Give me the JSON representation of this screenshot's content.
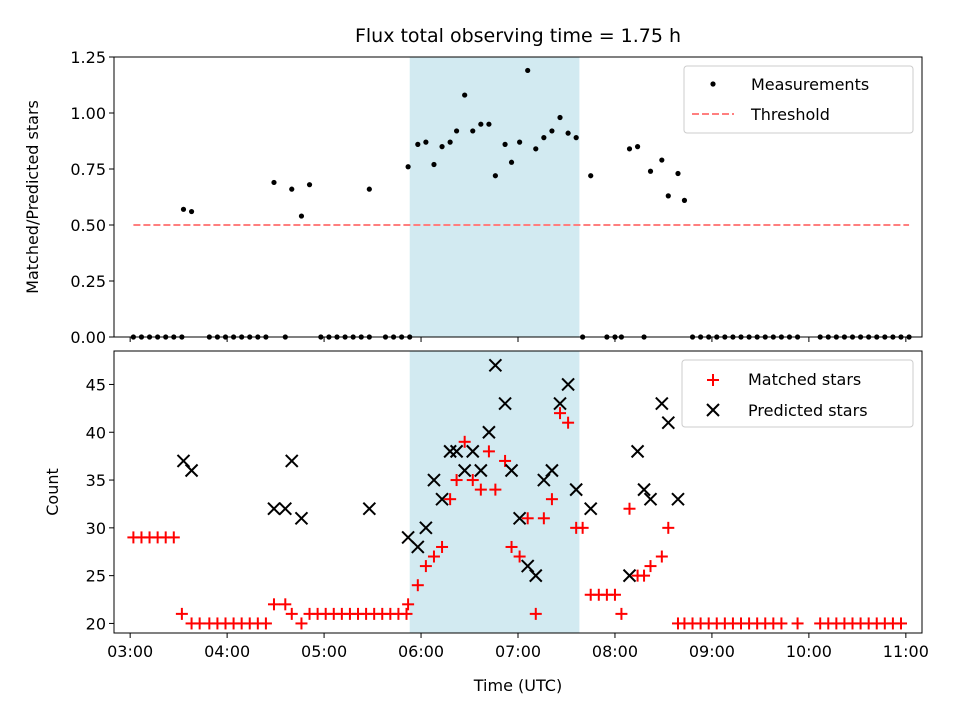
{
  "chart_data": [
    {
      "type": "scatter",
      "title": "Flux total observing time = 1.75 h",
      "ylabel": "Matched/Predicted stars",
      "xlabel": "",
      "xlim": [
        "02:50",
        "11:10"
      ],
      "ylim": [
        0,
        1.25
      ],
      "yticks": [
        "0.00",
        "0.25",
        "0.50",
        "0.75",
        "1.00",
        "1.25"
      ],
      "xticks": [
        "03:00",
        "04:00",
        "05:00",
        "06:00",
        "07:00",
        "08:00",
        "09:00",
        "10:00",
        "11:00"
      ],
      "shaded_span": [
        "05:53",
        "07:38"
      ],
      "shade_color": "#add8e6",
      "legend_position": "top-right",
      "series": [
        {
          "name": "Measurements",
          "marker": "dot",
          "color": "#000000",
          "points": [
            [
              "03:02",
              0
            ],
            [
              "03:07",
              0
            ],
            [
              "03:12",
              0
            ],
            [
              "03:17",
              0
            ],
            [
              "03:22",
              0
            ],
            [
              "03:27",
              0
            ],
            [
              "03:32",
              0
            ],
            [
              "03:33",
              0.57
            ],
            [
              "03:38",
              0.56
            ],
            [
              "03:49",
              0
            ],
            [
              "03:54",
              0
            ],
            [
              "03:59",
              0
            ],
            [
              "04:04",
              0
            ],
            [
              "04:09",
              0
            ],
            [
              "04:14",
              0
            ],
            [
              "04:19",
              0
            ],
            [
              "04:24",
              0
            ],
            [
              "04:29",
              0.69
            ],
            [
              "04:36",
              0
            ],
            [
              "04:40",
              0.66
            ],
            [
              "04:46",
              0.54
            ],
            [
              "04:51",
              0.68
            ],
            [
              "04:58",
              0
            ],
            [
              "05:03",
              0
            ],
            [
              "05:08",
              0
            ],
            [
              "05:13",
              0
            ],
            [
              "05:18",
              0
            ],
            [
              "05:23",
              0
            ],
            [
              "05:28",
              0
            ],
            [
              "05:28",
              0.66
            ],
            [
              "05:38",
              0
            ],
            [
              "05:43",
              0
            ],
            [
              "05:48",
              0
            ],
            [
              "05:53",
              0
            ],
            [
              "05:52",
              0.76
            ],
            [
              "05:58",
              0.86
            ],
            [
              "06:03",
              0.87
            ],
            [
              "06:08",
              0.77
            ],
            [
              "06:13",
              0.85
            ],
            [
              "06:18",
              0.87
            ],
            [
              "06:22",
              0.92
            ],
            [
              "06:27",
              1.08
            ],
            [
              "06:32",
              0.92
            ],
            [
              "06:37",
              0.95
            ],
            [
              "06:42",
              0.95
            ],
            [
              "06:46",
              0.72
            ],
            [
              "06:52",
              0.86
            ],
            [
              "06:56",
              0.78
            ],
            [
              "07:01",
              0.87
            ],
            [
              "07:06",
              1.19
            ],
            [
              "07:11",
              0.84
            ],
            [
              "07:16",
              0.89
            ],
            [
              "07:21",
              0.92
            ],
            [
              "07:26",
              0.98
            ],
            [
              "07:31",
              0.91
            ],
            [
              "07:36",
              0.89
            ],
            [
              "07:40",
              0
            ],
            [
              "07:45",
              0.72
            ],
            [
              "07:55",
              0
            ],
            [
              "08:00",
              0
            ],
            [
              "08:04",
              0
            ],
            [
              "08:09",
              0.84
            ],
            [
              "08:14",
              0.85
            ],
            [
              "08:18",
              0
            ],
            [
              "08:22",
              0.74
            ],
            [
              "08:29",
              0.79
            ],
            [
              "08:33",
              0.63
            ],
            [
              "08:39",
              0.73
            ],
            [
              "08:43",
              0.61
            ],
            [
              "08:48",
              0
            ],
            [
              "08:53",
              0
            ],
            [
              "08:58",
              0
            ],
            [
              "09:03",
              0
            ],
            [
              "09:08",
              0
            ],
            [
              "09:13",
              0
            ],
            [
              "09:18",
              0
            ],
            [
              "09:23",
              0
            ],
            [
              "09:28",
              0
            ],
            [
              "09:33",
              0
            ],
            [
              "09:38",
              0
            ],
            [
              "09:43",
              0
            ],
            [
              "09:48",
              0
            ],
            [
              "09:53",
              0
            ],
            [
              "10:07",
              0
            ],
            [
              "10:12",
              0
            ],
            [
              "10:17",
              0
            ],
            [
              "10:22",
              0
            ],
            [
              "10:27",
              0
            ],
            [
              "10:32",
              0
            ],
            [
              "10:37",
              0
            ],
            [
              "10:42",
              0
            ],
            [
              "10:47",
              0
            ],
            [
              "10:52",
              0
            ],
            [
              "10:57",
              0
            ],
            [
              "11:02",
              0
            ]
          ]
        },
        {
          "name": "Threshold",
          "marker": "dashed-line",
          "color": "#ff7f7f",
          "points": [
            [
              "03:02",
              0.5
            ],
            [
              "11:02",
              0.5
            ]
          ]
        }
      ]
    },
    {
      "type": "scatter",
      "title": "",
      "xlabel": "Time (UTC)",
      "ylabel": "Count",
      "xlim": [
        "02:50",
        "11:10"
      ],
      "ylim": [
        19,
        48.5
      ],
      "yticks": [
        "20",
        "25",
        "30",
        "35",
        "40",
        "45"
      ],
      "xticks": [
        "03:00",
        "04:00",
        "05:00",
        "06:00",
        "07:00",
        "08:00",
        "09:00",
        "10:00",
        "11:00"
      ],
      "shaded_span": [
        "05:53",
        "07:38"
      ],
      "shade_color": "#add8e6",
      "legend_position": "top-right",
      "series": [
        {
          "name": "Matched stars",
          "marker": "plus",
          "color": "#ff0000",
          "points": [
            [
              "03:02",
              29
            ],
            [
              "03:07",
              29
            ],
            [
              "03:12",
              29
            ],
            [
              "03:17",
              29
            ],
            [
              "03:22",
              29
            ],
            [
              "03:27",
              29
            ],
            [
              "03:32",
              21
            ],
            [
              "03:38",
              20
            ],
            [
              "03:43",
              20
            ],
            [
              "03:49",
              20
            ],
            [
              "03:54",
              20
            ],
            [
              "03:59",
              20
            ],
            [
              "04:04",
              20
            ],
            [
              "04:09",
              20
            ],
            [
              "04:14",
              20
            ],
            [
              "04:19",
              20
            ],
            [
              "04:24",
              20
            ],
            [
              "04:29",
              22
            ],
            [
              "04:36",
              22
            ],
            [
              "04:40",
              21
            ],
            [
              "04:46",
              20
            ],
            [
              "04:51",
              21
            ],
            [
              "04:56",
              21
            ],
            [
              "05:01",
              21
            ],
            [
              "05:06",
              21
            ],
            [
              "05:11",
              21
            ],
            [
              "05:16",
              21
            ],
            [
              "05:21",
              21
            ],
            [
              "05:26",
              21
            ],
            [
              "05:31",
              21
            ],
            [
              "05:36",
              21
            ],
            [
              "05:41",
              21
            ],
            [
              "05:46",
              21
            ],
            [
              "05:51",
              21
            ],
            [
              "05:52",
              22
            ],
            [
              "05:58",
              24
            ],
            [
              "06:03",
              26
            ],
            [
              "06:08",
              27
            ],
            [
              "06:13",
              28
            ],
            [
              "06:18",
              33
            ],
            [
              "06:22",
              35
            ],
            [
              "06:27",
              39
            ],
            [
              "06:32",
              35
            ],
            [
              "06:37",
              34
            ],
            [
              "06:42",
              38
            ],
            [
              "06:46",
              34
            ],
            [
              "06:52",
              37
            ],
            [
              "06:56",
              28
            ],
            [
              "07:01",
              27
            ],
            [
              "07:06",
              31
            ],
            [
              "07:11",
              21
            ],
            [
              "07:16",
              31
            ],
            [
              "07:21",
              33
            ],
            [
              "07:26",
              42
            ],
            [
              "07:31",
              41
            ],
            [
              "07:36",
              30
            ],
            [
              "07:40",
              30
            ],
            [
              "07:45",
              23
            ],
            [
              "07:50",
              23
            ],
            [
              "07:55",
              23
            ],
            [
              "08:00",
              23
            ],
            [
              "08:04",
              21
            ],
            [
              "08:09",
              32
            ],
            [
              "08:14",
              25
            ],
            [
              "08:18",
              25
            ],
            [
              "08:22",
              26
            ],
            [
              "08:29",
              27
            ],
            [
              "08:33",
              30
            ],
            [
              "08:39",
              20
            ],
            [
              "08:43",
              20
            ],
            [
              "08:48",
              20
            ],
            [
              "08:53",
              20
            ],
            [
              "08:58",
              20
            ],
            [
              "09:03",
              20
            ],
            [
              "09:08",
              20
            ],
            [
              "09:13",
              20
            ],
            [
              "09:18",
              20
            ],
            [
              "09:23",
              20
            ],
            [
              "09:28",
              20
            ],
            [
              "09:33",
              20
            ],
            [
              "09:38",
              20
            ],
            [
              "09:43",
              20
            ],
            [
              "09:53",
              20
            ],
            [
              "10:07",
              20
            ],
            [
              "10:12",
              20
            ],
            [
              "10:17",
              20
            ],
            [
              "10:22",
              20
            ],
            [
              "10:27",
              20
            ],
            [
              "10:32",
              20
            ],
            [
              "10:37",
              20
            ],
            [
              "10:42",
              20
            ],
            [
              "10:47",
              20
            ],
            [
              "10:52",
              20
            ],
            [
              "10:57",
              20
            ]
          ]
        },
        {
          "name": "Predicted stars",
          "marker": "x",
          "color": "#000000",
          "points": [
            [
              "03:33",
              37
            ],
            [
              "03:38",
              36
            ],
            [
              "04:29",
              32
            ],
            [
              "04:36",
              32
            ],
            [
              "04:40",
              37
            ],
            [
              "04:46",
              31
            ],
            [
              "05:28",
              32
            ],
            [
              "05:52",
              29
            ],
            [
              "05:58",
              28
            ],
            [
              "06:03",
              30
            ],
            [
              "06:08",
              35
            ],
            [
              "06:13",
              33
            ],
            [
              "06:18",
              38
            ],
            [
              "06:22",
              38
            ],
            [
              "06:27",
              36
            ],
            [
              "06:32",
              38
            ],
            [
              "06:37",
              36
            ],
            [
              "06:42",
              40
            ],
            [
              "06:46",
              47
            ],
            [
              "06:52",
              43
            ],
            [
              "06:56",
              36
            ],
            [
              "07:01",
              31
            ],
            [
              "07:06",
              26
            ],
            [
              "07:11",
              25
            ],
            [
              "07:16",
              35
            ],
            [
              "07:21",
              36
            ],
            [
              "07:26",
              43
            ],
            [
              "07:31",
              45
            ],
            [
              "07:36",
              34
            ],
            [
              "07:45",
              32
            ],
            [
              "08:09",
              25
            ],
            [
              "08:14",
              38
            ],
            [
              "08:18",
              34
            ],
            [
              "08:22",
              33
            ],
            [
              "08:29",
              43
            ],
            [
              "08:33",
              41
            ],
            [
              "08:39",
              33
            ]
          ]
        }
      ]
    }
  ]
}
